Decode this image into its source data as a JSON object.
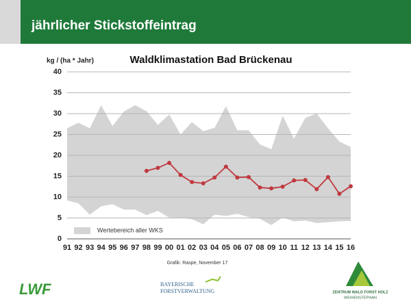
{
  "header": {
    "title": "jährlicher Stickstoffeintrag"
  },
  "chart_data": {
    "type": "line",
    "title": "Waldklimastation Bad Brückenau",
    "y_label": "kg / (ha * Jahr)",
    "source": "Grafik: Raspe, November 17",
    "categories": [
      "91",
      "92",
      "93",
      "94",
      "95",
      "96",
      "97",
      "98",
      "99",
      "00",
      "01",
      "02",
      "03",
      "04",
      "05",
      "06",
      "07",
      "08",
      "09",
      "10",
      "11",
      "12",
      "13",
      "14",
      "15",
      "16"
    ],
    "band": {
      "name": "Wertebereich aller WKS",
      "color": "#d4d4d4",
      "upper": [
        26.5,
        27.8,
        26.5,
        32,
        27,
        30.5,
        32,
        30.6,
        27.3,
        29.8,
        25,
        28,
        25.8,
        26.6,
        31.8,
        26,
        26,
        22.6,
        21.5,
        29.5,
        24,
        29,
        30,
        26.5,
        23.3,
        22
      ],
      "lower": [
        9.2,
        8.5,
        5.8,
        7.8,
        8.3,
        7,
        7,
        5.7,
        6.7,
        5.1,
        5.1,
        4.7,
        3.5,
        5.8,
        5.5,
        6,
        5.2,
        4.8,
        3.3,
        5.1,
        4.2,
        4.4,
        3.8,
        4,
        4.2,
        4.3
      ]
    },
    "series": [
      {
        "color": "#c0393f",
        "values": [
          null,
          null,
          null,
          null,
          null,
          null,
          null,
          16.3,
          17,
          18.2,
          15.3,
          13.6,
          13.3,
          14.7,
          17.3,
          14.7,
          14.8,
          12.3,
          12.1,
          12.5,
          14,
          14.1,
          11.9,
          14.8,
          10.8,
          12.6
        ]
      }
    ],
    "ylim": [
      0,
      40
    ],
    "yticks": [
      0,
      5,
      10,
      15,
      20,
      25,
      30,
      35,
      40
    ],
    "grid": true
  },
  "logos": {
    "left": "LWF",
    "center_line1": "BAYERISCHE",
    "center_line2": "FORSTVERWALTUNG",
    "right_line1": "ZENTRUM WALD FORST HOLZ",
    "right_line2": "WEIHENSTEPHAN"
  }
}
